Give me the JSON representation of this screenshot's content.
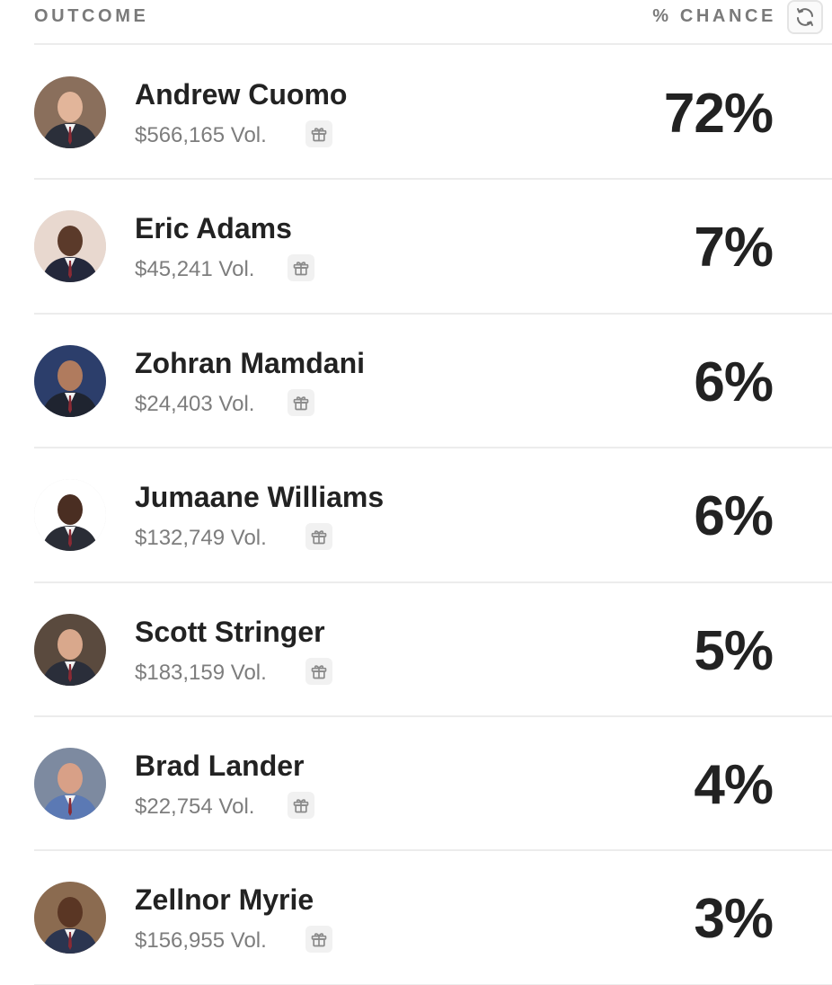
{
  "header": {
    "outcome_label": "OUTCOME",
    "chance_label": "% CHANCE",
    "refresh_icon": "refresh-icon"
  },
  "outcomes": [
    {
      "name": "Andrew Cuomo",
      "volume": "$566,165 Vol.",
      "chance": "72%",
      "avatar_bg": "#8a6f5c",
      "skin": "#e2b59a",
      "suit": "#2b2f3a"
    },
    {
      "name": "Eric Adams",
      "volume": "$45,241 Vol.",
      "chance": "7%",
      "avatar_bg": "#e8d8cf",
      "skin": "#5b3a2a",
      "suit": "#24283b"
    },
    {
      "name": "Zohran Mamdani",
      "volume": "$24,403 Vol.",
      "chance": "6%",
      "avatar_bg": "#2c3e6b",
      "skin": "#b07b5e",
      "suit": "#1f2430"
    },
    {
      "name": "Jumaane Williams",
      "volume": "$132,749 Vol.",
      "chance": "6%",
      "avatar_bg": "#ffffff",
      "skin": "#4a2e22",
      "suit": "#2a2d36"
    },
    {
      "name": "Scott Stringer",
      "volume": "$183,159 Vol.",
      "chance": "5%",
      "avatar_bg": "#5a4a3e",
      "skin": "#d9a88c",
      "suit": "#2a2e3a"
    },
    {
      "name": "Brad Lander",
      "volume": "$22,754 Vol.",
      "chance": "4%",
      "avatar_bg": "#7d8aa0",
      "skin": "#d8a087",
      "suit": "#5b79b4"
    },
    {
      "name": "Zellnor Myrie",
      "volume": "$156,955 Vol.",
      "chance": "3%",
      "avatar_bg": "#8b6b50",
      "skin": "#5a3624",
      "suit": "#2b3550"
    }
  ],
  "gift_icon": "gift-icon"
}
